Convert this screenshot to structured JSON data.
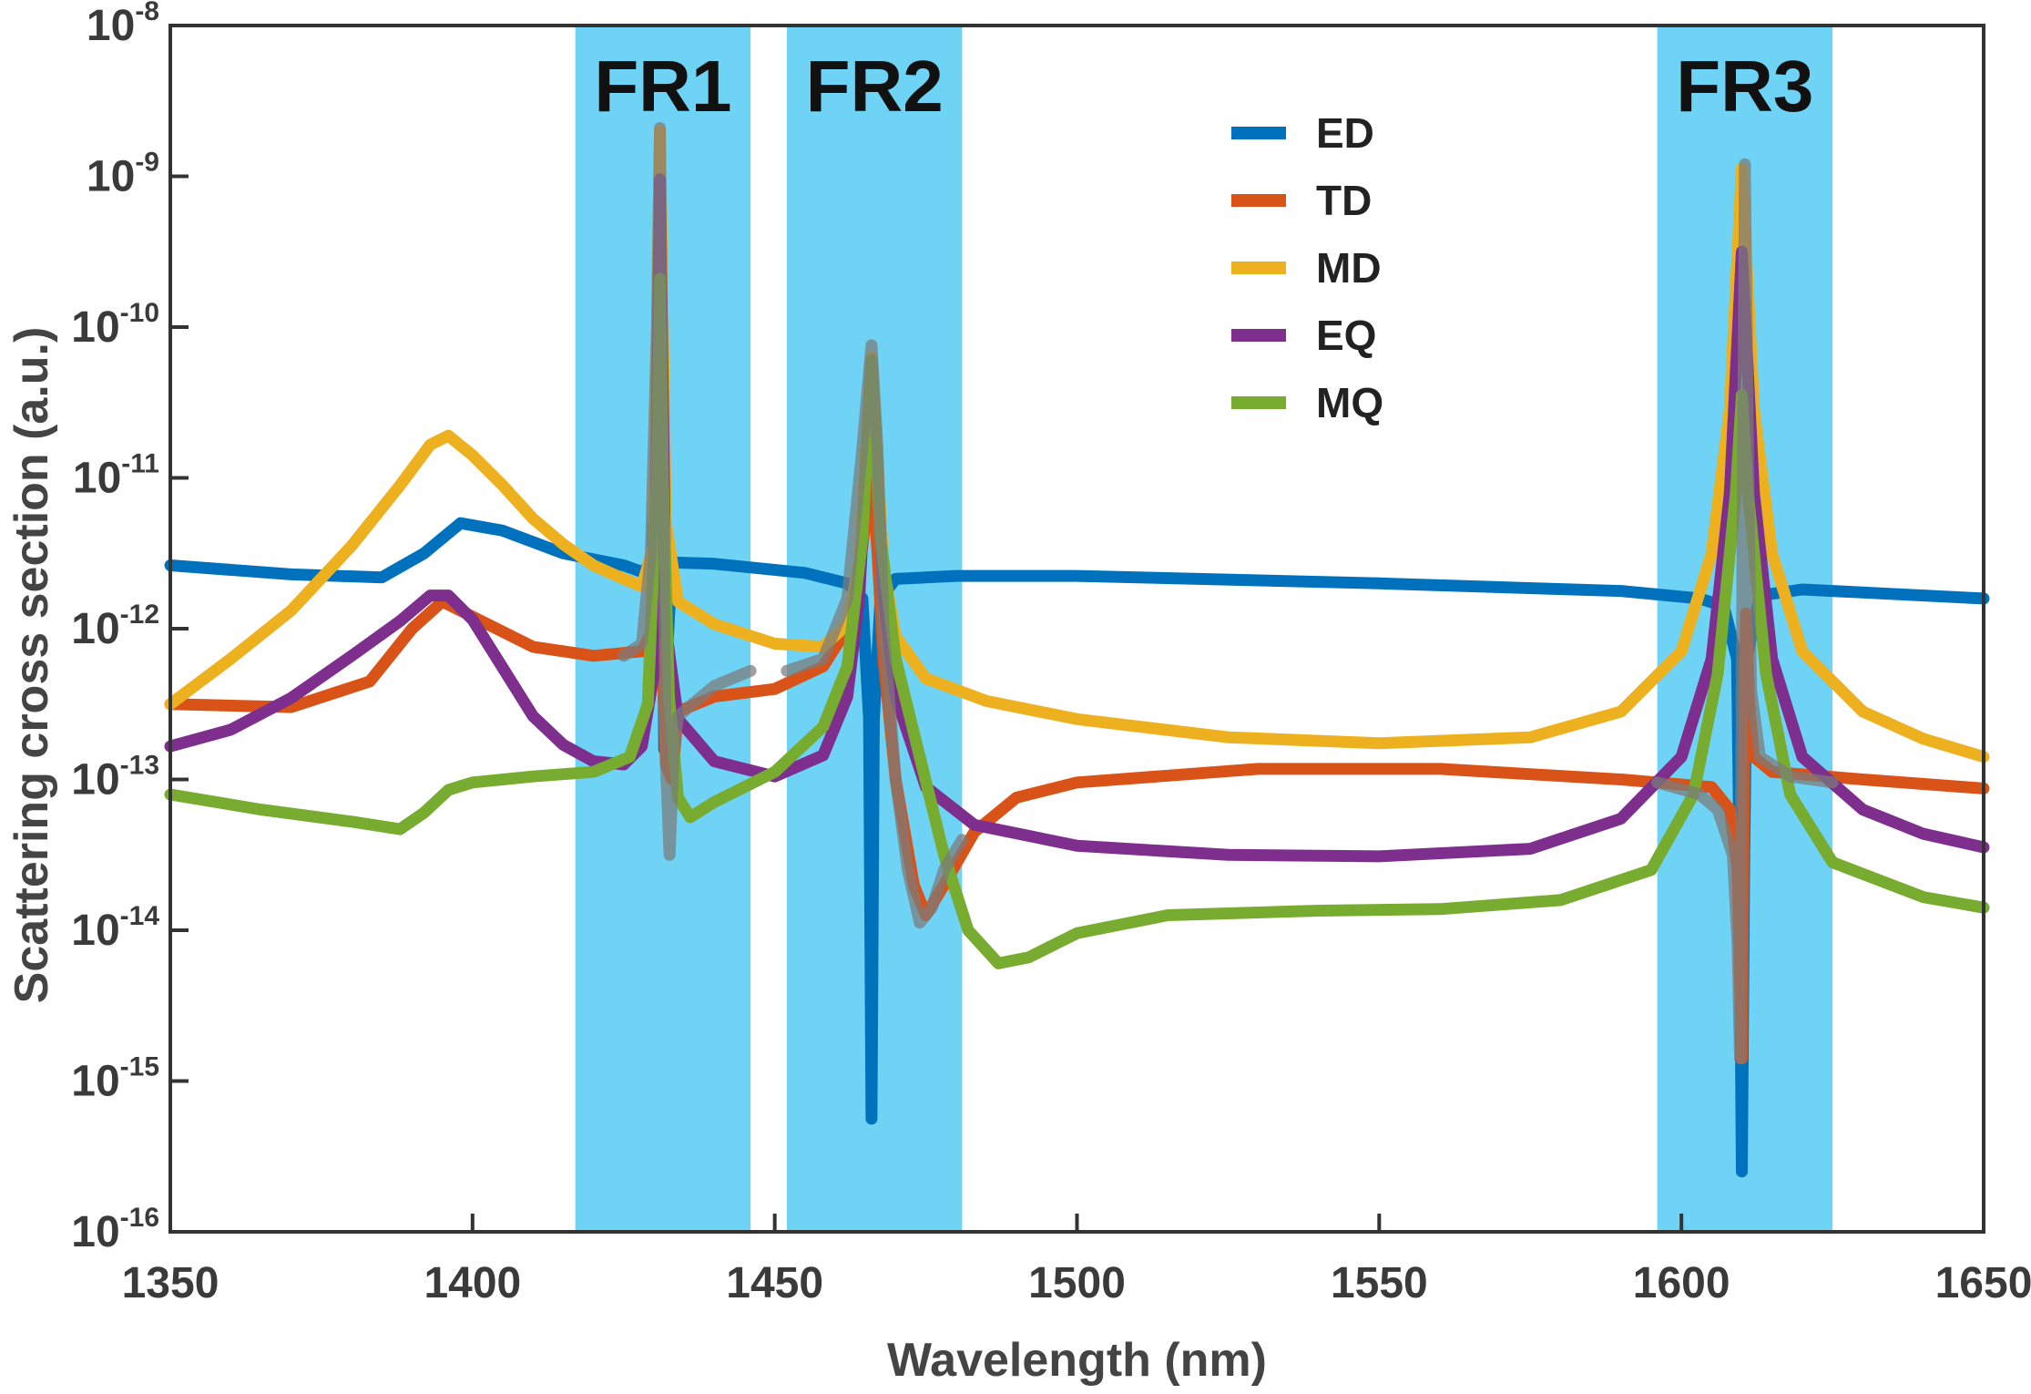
{
  "chart_data": {
    "type": "line",
    "xlabel": "Wavelength (nm)",
    "ylabel": "Scattering cross section (a.u.)",
    "xlim": [
      1350,
      1650
    ],
    "ylim_exponent": [
      -16,
      -8
    ],
    "yscale": "log",
    "x_ticks": [
      "1350",
      "1400",
      "1450",
      "1500",
      "1550",
      "1600",
      "1650"
    ],
    "y_ticks": [
      {
        "base": "10",
        "exp": "-8"
      },
      {
        "base": "10",
        "exp": "-9"
      },
      {
        "base": "10",
        "exp": "-10"
      },
      {
        "base": "10",
        "exp": "-11"
      },
      {
        "base": "10",
        "exp": "-12"
      },
      {
        "base": "10",
        "exp": "-13"
      },
      {
        "base": "10",
        "exp": "-14"
      },
      {
        "base": "10",
        "exp": "-15"
      },
      {
        "base": "10",
        "exp": "-16"
      }
    ],
    "legend_position": "top-center",
    "bands": [
      {
        "label": "FR1",
        "x0": 1417,
        "x1": 1446,
        "color": "#6fd3f5"
      },
      {
        "label": "FR2",
        "x0": 1452,
        "x1": 1481,
        "color": "#6fd3f5"
      },
      {
        "label": "FR3",
        "x0": 1596,
        "x1": 1625,
        "color": "#6fd3f5"
      }
    ],
    "series": [
      {
        "name": "ED",
        "color": "#0072bd",
        "points": [
          [
            1350,
            -11.58
          ],
          [
            1370,
            -11.64
          ],
          [
            1385,
            -11.66
          ],
          [
            1392,
            -11.5
          ],
          [
            1398,
            -11.3
          ],
          [
            1405,
            -11.35
          ],
          [
            1415,
            -11.5
          ],
          [
            1425,
            -11.58
          ],
          [
            1428.5,
            -11.63
          ],
          [
            1429.8,
            -11.5
          ],
          [
            1430.5,
            -10.6
          ],
          [
            1431,
            -9.04
          ],
          [
            1431.3,
            -10.6
          ],
          [
            1431.7,
            -12.8
          ],
          [
            1432,
            -12.3
          ],
          [
            1433,
            -11.56
          ],
          [
            1440,
            -11.57
          ],
          [
            1455,
            -11.63
          ],
          [
            1462,
            -11.7
          ],
          [
            1464.5,
            -11.8
          ],
          [
            1465.6,
            -12.6
          ],
          [
            1466,
            -15.25
          ],
          [
            1466.4,
            -12.6
          ],
          [
            1467.5,
            -11.8
          ],
          [
            1470,
            -11.67
          ],
          [
            1480,
            -11.65
          ],
          [
            1500,
            -11.65
          ],
          [
            1550,
            -11.7
          ],
          [
            1590,
            -11.75
          ],
          [
            1603,
            -11.8
          ],
          [
            1607,
            -11.85
          ],
          [
            1609.2,
            -12.2
          ],
          [
            1609.6,
            -13.5
          ],
          [
            1610,
            -15.6
          ],
          [
            1610.4,
            -13.5
          ],
          [
            1610.8,
            -12.2
          ],
          [
            1613,
            -11.78
          ],
          [
            1620,
            -11.74
          ],
          [
            1650,
            -11.8
          ]
        ]
      },
      {
        "name": "TD",
        "color": "#d95319",
        "points": [
          [
            1350,
            -12.5
          ],
          [
            1370,
            -12.52
          ],
          [
            1383,
            -12.35
          ],
          [
            1390,
            -12.0
          ],
          [
            1395,
            -11.82
          ],
          [
            1400,
            -11.92
          ],
          [
            1410,
            -12.12
          ],
          [
            1420,
            -12.18
          ],
          [
            1428,
            -12.15
          ],
          [
            1430,
            -12.0
          ],
          [
            1431,
            -11.9
          ],
          [
            1431.5,
            -12.3
          ],
          [
            1432,
            -12.9
          ],
          [
            1433,
            -13.0
          ],
          [
            1434,
            -12.55
          ],
          [
            1440,
            -12.45
          ],
          [
            1450,
            -12.4
          ],
          [
            1458,
            -12.25
          ],
          [
            1462,
            -12.0
          ],
          [
            1464,
            -11.6
          ],
          [
            1465,
            -11.3
          ],
          [
            1466,
            -10.9
          ],
          [
            1467,
            -11.5
          ],
          [
            1468,
            -12.2
          ],
          [
            1470,
            -13.0
          ],
          [
            1473,
            -13.7
          ],
          [
            1475,
            -13.9
          ],
          [
            1478,
            -13.7
          ],
          [
            1483,
            -13.35
          ],
          [
            1490,
            -13.12
          ],
          [
            1500,
            -13.02
          ],
          [
            1530,
            -12.93
          ],
          [
            1560,
            -12.93
          ],
          [
            1590,
            -13.0
          ],
          [
            1605,
            -13.05
          ],
          [
            1608,
            -13.2
          ],
          [
            1609.3,
            -13.6
          ],
          [
            1609.7,
            -14.3
          ],
          [
            1610,
            -14.85
          ],
          [
            1610.3,
            -13.2
          ],
          [
            1610.7,
            -11.9
          ],
          [
            1611.2,
            -12.5
          ],
          [
            1612,
            -12.85
          ],
          [
            1615,
            -12.95
          ],
          [
            1630,
            -13.0
          ],
          [
            1650,
            -13.06
          ]
        ]
      },
      {
        "name": "MD",
        "color": "#edb120",
        "points": [
          [
            1350,
            -12.5
          ],
          [
            1360,
            -12.2
          ],
          [
            1370,
            -11.88
          ],
          [
            1380,
            -11.45
          ],
          [
            1388,
            -11.05
          ],
          [
            1393,
            -10.78
          ],
          [
            1396,
            -10.72
          ],
          [
            1400,
            -10.85
          ],
          [
            1405,
            -11.05
          ],
          [
            1410,
            -11.27
          ],
          [
            1415,
            -11.44
          ],
          [
            1420,
            -11.58
          ],
          [
            1425,
            -11.67
          ],
          [
            1428,
            -11.72
          ],
          [
            1430,
            -11.45
          ],
          [
            1431,
            -8.7
          ],
          [
            1432,
            -11.3
          ],
          [
            1434,
            -11.82
          ],
          [
            1440,
            -11.97
          ],
          [
            1450,
            -12.1
          ],
          [
            1458,
            -12.12
          ],
          [
            1462,
            -11.97
          ],
          [
            1464,
            -11.55
          ],
          [
            1465.5,
            -10.55
          ],
          [
            1466,
            -10.2
          ],
          [
            1466.5,
            -10.55
          ],
          [
            1468,
            -11.6
          ],
          [
            1470,
            -12.05
          ],
          [
            1475,
            -12.33
          ],
          [
            1485,
            -12.48
          ],
          [
            1500,
            -12.6
          ],
          [
            1525,
            -12.72
          ],
          [
            1550,
            -12.76
          ],
          [
            1575,
            -12.72
          ],
          [
            1590,
            -12.55
          ],
          [
            1600,
            -12.15
          ],
          [
            1605,
            -11.5
          ],
          [
            1608,
            -10.55
          ],
          [
            1610,
            -8.95
          ],
          [
            1612,
            -10.55
          ],
          [
            1615,
            -11.5
          ],
          [
            1620,
            -12.15
          ],
          [
            1630,
            -12.55
          ],
          [
            1640,
            -12.73
          ],
          [
            1650,
            -12.85
          ]
        ]
      },
      {
        "name": "EQ",
        "color": "#7e2f8e",
        "points": [
          [
            1350,
            -12.78
          ],
          [
            1360,
            -12.67
          ],
          [
            1370,
            -12.46
          ],
          [
            1380,
            -12.18
          ],
          [
            1388,
            -11.95
          ],
          [
            1393,
            -11.78
          ],
          [
            1396,
            -11.78
          ],
          [
            1400,
            -11.94
          ],
          [
            1405,
            -12.26
          ],
          [
            1410,
            -12.58
          ],
          [
            1415,
            -12.77
          ],
          [
            1420,
            -12.88
          ],
          [
            1425,
            -12.9
          ],
          [
            1428,
            -12.78
          ],
          [
            1430,
            -12.3
          ],
          [
            1431,
            -9.02
          ],
          [
            1432,
            -12.0
          ],
          [
            1434,
            -12.6
          ],
          [
            1440,
            -12.88
          ],
          [
            1450,
            -12.98
          ],
          [
            1458,
            -12.84
          ],
          [
            1462,
            -12.45
          ],
          [
            1464,
            -11.78
          ],
          [
            1465.5,
            -10.6
          ],
          [
            1466,
            -10.22
          ],
          [
            1466.5,
            -10.6
          ],
          [
            1468,
            -11.78
          ],
          [
            1470,
            -12.45
          ],
          [
            1475,
            -13.05
          ],
          [
            1483,
            -13.3
          ],
          [
            1500,
            -13.44
          ],
          [
            1525,
            -13.5
          ],
          [
            1550,
            -13.51
          ],
          [
            1575,
            -13.46
          ],
          [
            1590,
            -13.26
          ],
          [
            1600,
            -12.85
          ],
          [
            1605,
            -12.2
          ],
          [
            1608,
            -11.1
          ],
          [
            1610,
            -9.5
          ],
          [
            1612,
            -11.1
          ],
          [
            1615,
            -12.2
          ],
          [
            1620,
            -12.85
          ],
          [
            1630,
            -13.2
          ],
          [
            1640,
            -13.36
          ],
          [
            1650,
            -13.45
          ]
        ]
      },
      {
        "name": "MQ",
        "color": "#77ac30",
        "points": [
          [
            1350,
            -13.1
          ],
          [
            1365,
            -13.2
          ],
          [
            1380,
            -13.28
          ],
          [
            1388,
            -13.33
          ],
          [
            1392,
            -13.22
          ],
          [
            1396,
            -13.07
          ],
          [
            1400,
            -13.02
          ],
          [
            1410,
            -12.98
          ],
          [
            1420,
            -12.95
          ],
          [
            1426,
            -12.85
          ],
          [
            1429,
            -12.5
          ],
          [
            1430.5,
            -11.0
          ],
          [
            1431,
            -9.68
          ],
          [
            1431.5,
            -11.0
          ],
          [
            1432.5,
            -12.45
          ],
          [
            1434,
            -13.12
          ],
          [
            1436,
            -13.25
          ],
          [
            1440,
            -13.15
          ],
          [
            1450,
            -12.95
          ],
          [
            1458,
            -12.65
          ],
          [
            1462,
            -12.25
          ],
          [
            1464.5,
            -11.4
          ],
          [
            1465.5,
            -10.6
          ],
          [
            1466,
            -10.22
          ],
          [
            1466.5,
            -10.6
          ],
          [
            1467.5,
            -11.4
          ],
          [
            1470,
            -12.2
          ],
          [
            1474,
            -12.85
          ],
          [
            1478,
            -13.5
          ],
          [
            1482,
            -14.0
          ],
          [
            1487,
            -14.22
          ],
          [
            1492,
            -14.18
          ],
          [
            1500,
            -14.02
          ],
          [
            1515,
            -13.9
          ],
          [
            1540,
            -13.87
          ],
          [
            1560,
            -13.86
          ],
          [
            1580,
            -13.8
          ],
          [
            1595,
            -13.6
          ],
          [
            1602,
            -13.1
          ],
          [
            1606,
            -12.3
          ],
          [
            1609,
            -11.1
          ],
          [
            1610,
            -10.45
          ],
          [
            1611,
            -11.1
          ],
          [
            1614,
            -12.3
          ],
          [
            1618,
            -13.1
          ],
          [
            1625,
            -13.55
          ],
          [
            1640,
            -13.78
          ],
          [
            1650,
            -13.85
          ]
        ]
      },
      {
        "name": "",
        "color": "#7a7a7a",
        "points": [
          [
            1425,
            -12.18
          ],
          [
            1428,
            -12.1
          ],
          [
            1429.5,
            -11.5
          ],
          [
            1430.5,
            -10.0
          ],
          [
            1431,
            -8.68
          ],
          [
            1431.5,
            -11.0
          ],
          [
            1432,
            -12.9
          ],
          [
            1432.6,
            -13.5
          ],
          [
            1433.3,
            -12.8
          ],
          [
            1434,
            -12.58
          ],
          [
            1440,
            -12.38
          ],
          [
            1446,
            -12.28
          ]
        ]
      },
      {
        "name": "",
        "color": "#7a7a7a",
        "points": [
          [
            1452,
            -12.28
          ],
          [
            1458,
            -12.2
          ],
          [
            1462,
            -11.8
          ],
          [
            1464.5,
            -10.8
          ],
          [
            1466,
            -10.12
          ],
          [
            1467,
            -10.8
          ],
          [
            1468,
            -12.0
          ],
          [
            1470,
            -13.0
          ],
          [
            1472,
            -13.6
          ],
          [
            1474,
            -13.95
          ],
          [
            1476,
            -13.85
          ],
          [
            1478,
            -13.6
          ],
          [
            1481,
            -13.4
          ]
        ]
      },
      {
        "name": "",
        "color": "#7a7a7a",
        "points": [
          [
            1596,
            -13.02
          ],
          [
            1603,
            -13.1
          ],
          [
            1606,
            -13.2
          ],
          [
            1608.5,
            -13.5
          ],
          [
            1609.3,
            -14.1
          ],
          [
            1609.7,
            -14.85
          ],
          [
            1610.1,
            -11.5
          ],
          [
            1610.5,
            -8.92
          ],
          [
            1611,
            -10.8
          ],
          [
            1611.5,
            -12.4
          ],
          [
            1613,
            -12.85
          ],
          [
            1618,
            -12.98
          ],
          [
            1625,
            -13.02
          ]
        ]
      }
    ]
  }
}
